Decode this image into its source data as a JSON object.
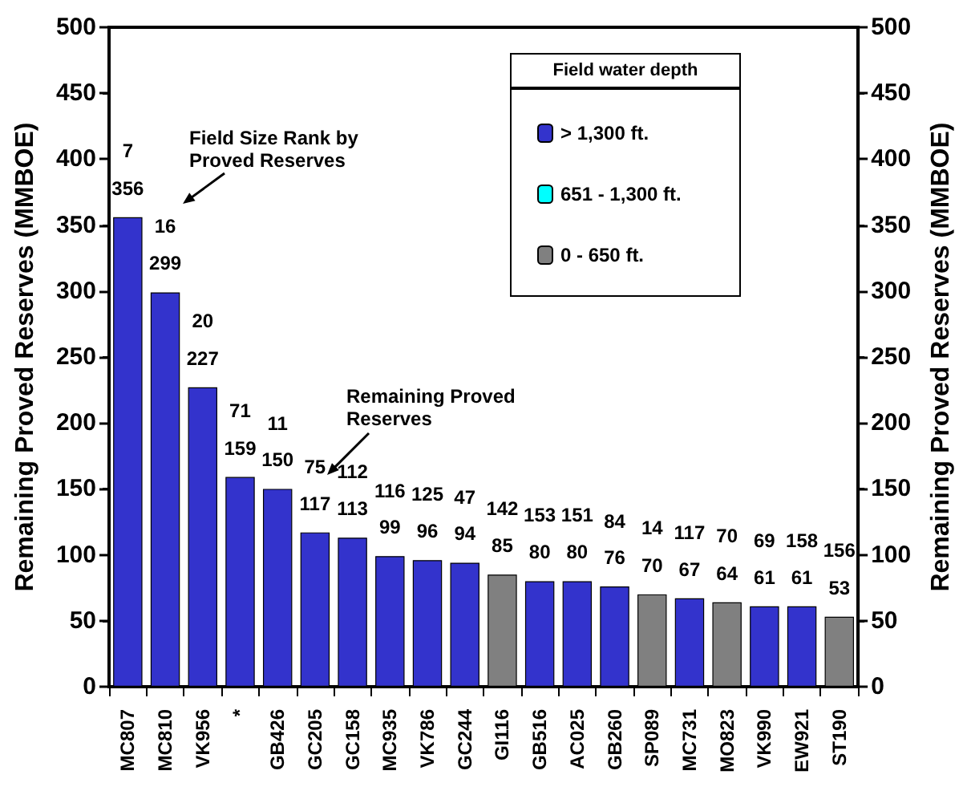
{
  "chart_data": {
    "type": "bar",
    "ylabel": "Remaining Proved Reserves (MMBOE)",
    "y2label": "Remaining Proved Reserves (MMBOE)",
    "legend_title": "Field water depth",
    "categories": [
      "MC807",
      "MC810",
      "VK956",
      "*",
      "GB426",
      "GC205",
      "GC158",
      "MC935",
      "VK786",
      "GC244",
      "GI116",
      "GB516",
      "AC025",
      "GB260",
      "SP089",
      "MC731",
      "MO823",
      "VK990",
      "EW921",
      "ST190"
    ],
    "stacked": true,
    "series": [
      {
        "name": "> 1,300 ft.",
        "color": "#3333cc",
        "values": [
          356,
          299,
          227,
          159,
          150,
          117,
          113,
          99,
          96,
          94,
          null,
          80,
          80,
          76,
          null,
          67,
          null,
          61,
          61,
          null
        ]
      },
      {
        "name": "651 - 1,300 ft.",
        "color": "#00ffff",
        "values": [
          null,
          null,
          null,
          null,
          null,
          null,
          null,
          null,
          null,
          null,
          null,
          null,
          null,
          null,
          null,
          null,
          null,
          null,
          null,
          null
        ]
      },
      {
        "name": "0 - 650 ft.",
        "color": "#808080",
        "values": [
          null,
          null,
          null,
          null,
          null,
          null,
          null,
          null,
          null,
          null,
          85,
          null,
          null,
          null,
          70,
          null,
          64,
          null,
          null,
          53
        ]
      }
    ],
    "data_labels": true,
    "ylim": [
      0,
      500
    ],
    "yticks": [
      0,
      50,
      100,
      150,
      200,
      250,
      300,
      350,
      400,
      450,
      500
    ],
    "y2lim": [
      0,
      500
    ],
    "y2ticks": [
      0,
      50,
      100,
      150,
      200,
      250,
      300,
      350,
      400,
      450,
      500
    ],
    "grid": false,
    "legend": "top right",
    "annotations": [
      "Field Size Rank by Proved Reserves",
      "Remaining Proved Reserves",
      "7",
      "16",
      "20",
      "71",
      "11",
      "75",
      "112",
      "116",
      "125",
      "47",
      "142",
      "153",
      "151",
      "84",
      "14",
      "117",
      "70",
      "69",
      "158",
      "156"
    ]
  }
}
